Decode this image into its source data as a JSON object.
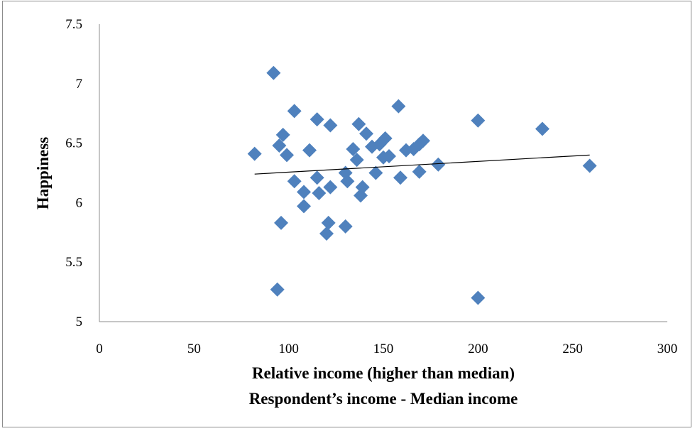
{
  "chart_data": {
    "type": "scatter",
    "xlabel": "Relative income (higher than median)",
    "xlabel_line2": "Respondent’s income - Median income",
    "ylabel": "Happiness",
    "xlim": [
      0,
      300
    ],
    "ylim": [
      5,
      7.5
    ],
    "x_ticks": [
      "0",
      "50",
      "100",
      "150",
      "200",
      "250",
      "300"
    ],
    "y_ticks": [
      "5",
      "5.5",
      "6",
      "6.5",
      "7",
      "7.5"
    ],
    "grid": false,
    "marker_color": "#4f81bd",
    "trendline": {
      "x": [
        82,
        259
      ],
      "y": [
        6.24,
        6.4
      ],
      "color": "#000000"
    },
    "points": [
      {
        "x": 82,
        "y": 6.41
      },
      {
        "x": 92,
        "y": 7.09
      },
      {
        "x": 95,
        "y": 6.48
      },
      {
        "x": 96,
        "y": 5.83
      },
      {
        "x": 97,
        "y": 6.57
      },
      {
        "x": 99,
        "y": 6.4
      },
      {
        "x": 94,
        "y": 5.27
      },
      {
        "x": 103,
        "y": 6.77
      },
      {
        "x": 103,
        "y": 6.18
      },
      {
        "x": 108,
        "y": 6.09
      },
      {
        "x": 108,
        "y": 5.97
      },
      {
        "x": 111,
        "y": 6.44
      },
      {
        "x": 115,
        "y": 6.7
      },
      {
        "x": 115,
        "y": 6.21
      },
      {
        "x": 116,
        "y": 6.08
      },
      {
        "x": 120,
        "y": 5.74
      },
      {
        "x": 121,
        "y": 5.83
      },
      {
        "x": 122,
        "y": 6.65
      },
      {
        "x": 122,
        "y": 6.13
      },
      {
        "x": 130,
        "y": 6.25
      },
      {
        "x": 130,
        "y": 5.8
      },
      {
        "x": 131,
        "y": 6.18
      },
      {
        "x": 134,
        "y": 6.45
      },
      {
        "x": 136,
        "y": 6.36
      },
      {
        "x": 137,
        "y": 6.66
      },
      {
        "x": 138,
        "y": 6.06
      },
      {
        "x": 139,
        "y": 6.13
      },
      {
        "x": 141,
        "y": 6.58
      },
      {
        "x": 144,
        "y": 6.47
      },
      {
        "x": 146,
        "y": 6.25
      },
      {
        "x": 148,
        "y": 6.49
      },
      {
        "x": 150,
        "y": 6.38
      },
      {
        "x": 151,
        "y": 6.54
      },
      {
        "x": 153,
        "y": 6.39
      },
      {
        "x": 158,
        "y": 6.81
      },
      {
        "x": 159,
        "y": 6.21
      },
      {
        "x": 162,
        "y": 6.44
      },
      {
        "x": 166,
        "y": 6.45
      },
      {
        "x": 169,
        "y": 6.26
      },
      {
        "x": 169,
        "y": 6.49
      },
      {
        "x": 171,
        "y": 6.52
      },
      {
        "x": 179,
        "y": 6.32
      },
      {
        "x": 200,
        "y": 6.69
      },
      {
        "x": 200,
        "y": 5.2
      },
      {
        "x": 234,
        "y": 6.62
      },
      {
        "x": 259,
        "y": 6.31
      }
    ]
  }
}
